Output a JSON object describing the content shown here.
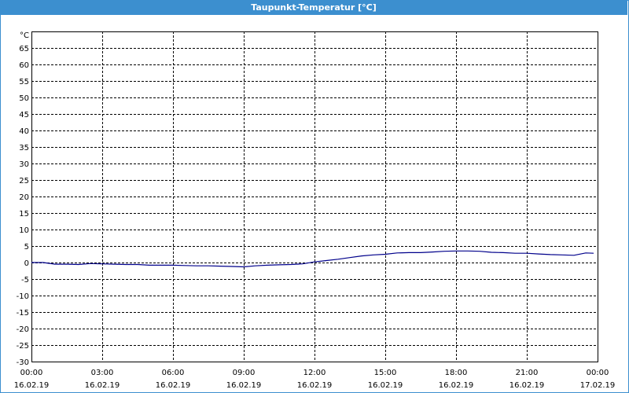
{
  "window": {
    "title": "Taupunkt-Temperatur [°C]"
  },
  "colors": {
    "titlebar": "#3c8fcf",
    "series": "#00008b",
    "grid": "#000000"
  },
  "chart_data": {
    "type": "line",
    "title": "Taupunkt-Temperatur [°C]",
    "ylabel": "°C",
    "ylim": [
      -30,
      70
    ],
    "y_ticks": [
      "65",
      "60",
      "55",
      "50",
      "45",
      "40",
      "35",
      "30",
      "25",
      "20",
      "15",
      "10",
      "5",
      "0",
      "-5",
      "-10",
      "-15",
      "-20",
      "-25",
      "-30"
    ],
    "x_ticks": [
      {
        "time": "00:00",
        "date": "16.02.19"
      },
      {
        "time": "03:00",
        "date": "16.02.19"
      },
      {
        "time": "06:00",
        "date": "16.02.19"
      },
      {
        "time": "09:00",
        "date": "16.02.19"
      },
      {
        "time": "12:00",
        "date": "16.02.19"
      },
      {
        "time": "15:00",
        "date": "16.02.19"
      },
      {
        "time": "18:00",
        "date": "16.02.19"
      },
      {
        "time": "21:00",
        "date": "16.02.19"
      },
      {
        "time": "00:00",
        "date": "17.02.19"
      }
    ],
    "grid": true,
    "legend": "none",
    "series": [
      {
        "x": [
          "16.02.19 00:00",
          "16.02.19 00:30",
          "16.02.19 01:00",
          "16.02.19 01:30",
          "16.02.19 02:00",
          "16.02.19 02:30",
          "16.02.19 03:00",
          "16.02.19 03:30",
          "16.02.19 04:00",
          "16.02.19 04:30",
          "16.02.19 05:00",
          "16.02.19 05:30",
          "16.02.19 06:00",
          "16.02.19 06:30",
          "16.02.19 07:00",
          "16.02.19 07:30",
          "16.02.19 08:00",
          "16.02.19 08:30",
          "16.02.19 09:00",
          "16.02.19 09:30",
          "16.02.19 10:00",
          "16.02.19 10:30",
          "16.02.19 11:00",
          "16.02.19 11:30",
          "16.02.19 12:00",
          "16.02.19 12:30",
          "16.02.19 13:00",
          "16.02.19 13:30",
          "16.02.19 14:00",
          "16.02.19 14:30",
          "16.02.19 15:00",
          "16.02.19 15:30",
          "16.02.19 16:00",
          "16.02.19 16:30",
          "16.02.19 17:00",
          "16.02.19 17:30",
          "16.02.19 18:00",
          "16.02.19 18:30",
          "16.02.19 19:00",
          "16.02.19 19:30",
          "16.02.19 20:00",
          "16.02.19 20:30",
          "16.02.19 21:00",
          "16.02.19 21:30",
          "16.02.19 22:00",
          "16.02.19 22:30",
          "16.02.19 23:00",
          "16.02.19 23:30",
          "16.02.19 23:50"
        ],
        "values": [
          0,
          0,
          -0.5,
          -0.5,
          -0.6,
          -0.3,
          -0.4,
          -0.5,
          -0.6,
          -0.6,
          -0.8,
          -0.8,
          -0.8,
          -0.9,
          -1,
          -1,
          -1.1,
          -1.2,
          -1.3,
          -1,
          -0.8,
          -0.7,
          -0.6,
          -0.4,
          0.2,
          0.6,
          1,
          1.5,
          2,
          2.3,
          2.5,
          2.9,
          3,
          3,
          3.2,
          3.4,
          3.5,
          3.5,
          3.4,
          3.1,
          3,
          2.8,
          2.8,
          2.6,
          2.4,
          2.3,
          2.2,
          2.9,
          2.8
        ]
      }
    ]
  }
}
